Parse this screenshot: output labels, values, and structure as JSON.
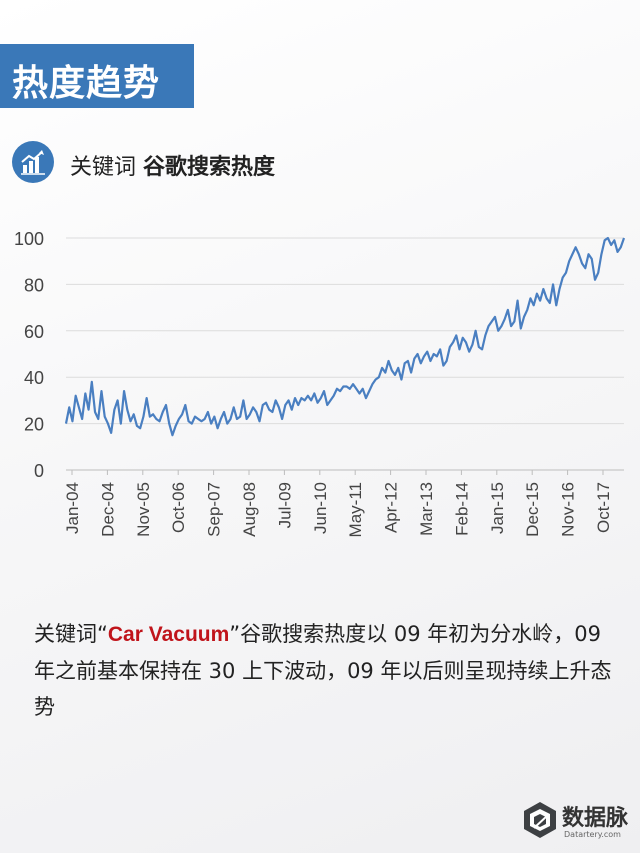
{
  "banner": {
    "title": "热度趋势"
  },
  "subtitle": {
    "prefix": "关键词",
    "bold": "谷歌搜索热度"
  },
  "description": {
    "part1": "关键词“",
    "highlight": "Car Vacuum",
    "part2": "”谷歌搜索热度以 09 年初为分水岭，09 年之前基本保持在 30 上下波动，09 年以后则呈现持续上升态势"
  },
  "logo": {
    "name": "数据脉",
    "url_text": "Datartery.com"
  },
  "colors": {
    "accent": "#3a78b8",
    "line": "#4a7fc1",
    "highlight": "#c0141b"
  },
  "chart_data": {
    "type": "line",
    "title": "",
    "xlabel": "",
    "ylabel": "",
    "ylim": [
      0,
      100
    ],
    "yticks": [
      0,
      20,
      40,
      60,
      80,
      100
    ],
    "grid": true,
    "x_tick_labels": [
      "Jan-04",
      "Dec-04",
      "Nov-05",
      "Oct-06",
      "Sep-07",
      "Aug-08",
      "Jul-09",
      "Jun-10",
      "May-11",
      "Apr-12",
      "Mar-13",
      "Feb-14",
      "Jan-15",
      "Dec-15",
      "Nov-16",
      "Oct-17"
    ],
    "x_start": "2004-01",
    "x_end": "2018-03",
    "series": [
      {
        "values": [
          20,
          27,
          21,
          32,
          27,
          22,
          33,
          26,
          38,
          25,
          22,
          34,
          23,
          20,
          16,
          26,
          30,
          20,
          34,
          26,
          21,
          24,
          19,
          18,
          23,
          31,
          23,
          24,
          22,
          21,
          25,
          28,
          20,
          15,
          19,
          22,
          24,
          28,
          21,
          20,
          23,
          22,
          21,
          22,
          25,
          20,
          23,
          18,
          22,
          25,
          20,
          22,
          27,
          22,
          23,
          30,
          22,
          24,
          27,
          25,
          21,
          28,
          29,
          26,
          25,
          30,
          27,
          22,
          28,
          30,
          26,
          31,
          28,
          31,
          30,
          32,
          30,
          33,
          29,
          31,
          34,
          28,
          30,
          32,
          35,
          34,
          36,
          36,
          35,
          37,
          35,
          33,
          35,
          31,
          34,
          37,
          39,
          40,
          44,
          42,
          47,
          43,
          41,
          44,
          39,
          46,
          47,
          42,
          48,
          50,
          46,
          49,
          51,
          47,
          50,
          49,
          52,
          45,
          47,
          53,
          55,
          58,
          52,
          57,
          55,
          51,
          54,
          60,
          53,
          52,
          58,
          62,
          64,
          66,
          60,
          62,
          65,
          69,
          62,
          64,
          73,
          61,
          66,
          69,
          74,
          71,
          76,
          73,
          78,
          74,
          72,
          80,
          71,
          78,
          83,
          85,
          90,
          93,
          96,
          93,
          89,
          87,
          93,
          91,
          82,
          85,
          93,
          99,
          100,
          97,
          99,
          94,
          96,
          100
        ]
      }
    ]
  }
}
